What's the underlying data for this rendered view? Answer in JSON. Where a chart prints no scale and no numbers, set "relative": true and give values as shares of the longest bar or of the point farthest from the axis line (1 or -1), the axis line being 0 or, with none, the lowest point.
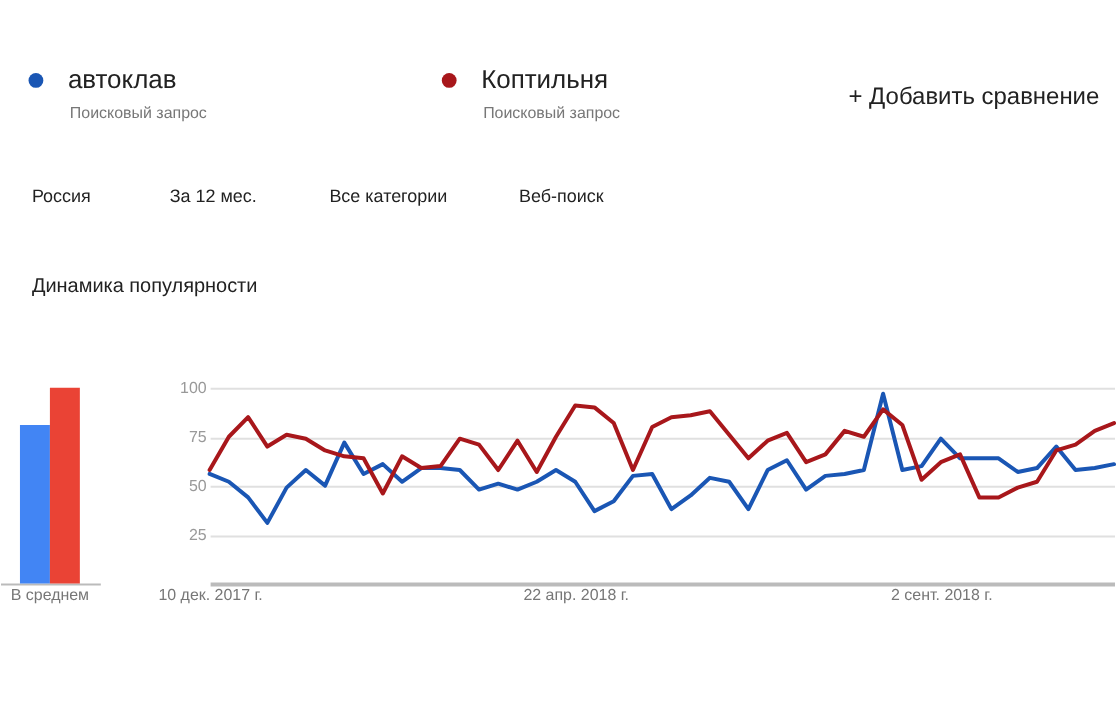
{
  "chart_data": [
    {
      "type": "bar",
      "categories": [
        "В среднем"
      ],
      "relative": true,
      "series": [
        {
          "color": "#4285f4",
          "values": [
            0.81
          ]
        },
        {
          "color": "#ea4335",
          "values": [
            1
          ]
        }
      ]
    },
    {
      "type": "line",
      "title": "Динамика популярности",
      "legend": "top left",
      "grid": "y",
      "ylim": [
        0,
        100
      ],
      "yticks": [
        25,
        50,
        75,
        100
      ],
      "xlim": [
        "2017-12-10",
        "2018-11-04"
      ],
      "xticks": [
        {
          "value": "2017-12-10",
          "label": "10 дек. 2017 г."
        },
        {
          "value": "2018-04-22",
          "label": "22 апр. 2018 г."
        },
        {
          "value": "2018-09-02",
          "label": "2 сент. 2018 г."
        }
      ],
      "annotations": [
        "Поисковый запрос",
        "Поисковый запрос",
        "+ Добавить сравнение",
        "Россия",
        "За 12 мес.",
        "Все категории",
        "Веб-поиск"
      ],
      "x": [
        "2017-12-10",
        "2017-12-17",
        "2017-12-24",
        "2017-12-31",
        "2018-01-07",
        "2018-01-14",
        "2018-01-21",
        "2018-01-28",
        "2018-02-04",
        "2018-02-11",
        "2018-02-18",
        "2018-02-25",
        "2018-03-04",
        "2018-03-11",
        "2018-03-18",
        "2018-03-25",
        "2018-04-01",
        "2018-04-08",
        "2018-04-15",
        "2018-04-22",
        "2018-04-29",
        "2018-05-06",
        "2018-05-13",
        "2018-05-20",
        "2018-05-27",
        "2018-06-03",
        "2018-06-10",
        "2018-06-17",
        "2018-06-24",
        "2018-07-01",
        "2018-07-08",
        "2018-07-15",
        "2018-07-22",
        "2018-07-29",
        "2018-08-05",
        "2018-08-12",
        "2018-08-19",
        "2018-08-26",
        "2018-09-02",
        "2018-09-09",
        "2018-09-16",
        "2018-09-23",
        "2018-09-30",
        "2018-10-07",
        "2018-10-14",
        "2018-10-21",
        "2018-10-28",
        "2018-11-04"
      ],
      "series": [
        {
          "name": "автоклав",
          "color": "#1a56b4",
          "values": [
            56,
            52,
            44,
            31,
            49,
            58,
            50,
            72,
            56,
            61,
            52,
            59,
            59,
            58,
            48,
            51,
            48,
            52,
            58,
            52,
            37,
            42,
            55,
            56,
            38,
            45,
            54,
            52,
            38,
            58,
            63,
            48,
            55,
            56,
            58,
            97,
            58,
            60,
            74,
            64,
            64,
            64,
            57,
            59,
            70,
            58,
            59,
            61
          ]
        },
        {
          "name": "Коптильня",
          "color": "#a8171b",
          "values": [
            58,
            75,
            85,
            70,
            76,
            74,
            68,
            65,
            64,
            46,
            65,
            59,
            60,
            74,
            71,
            58,
            73,
            57,
            75,
            91,
            90,
            82,
            58,
            80,
            85,
            86,
            88,
            76,
            64,
            73,
            77,
            62,
            66,
            78,
            75,
            89,
            81,
            53,
            62,
            66,
            44,
            44,
            49,
            52,
            68,
            71,
            78,
            82
          ]
        }
      ]
    }
  ]
}
